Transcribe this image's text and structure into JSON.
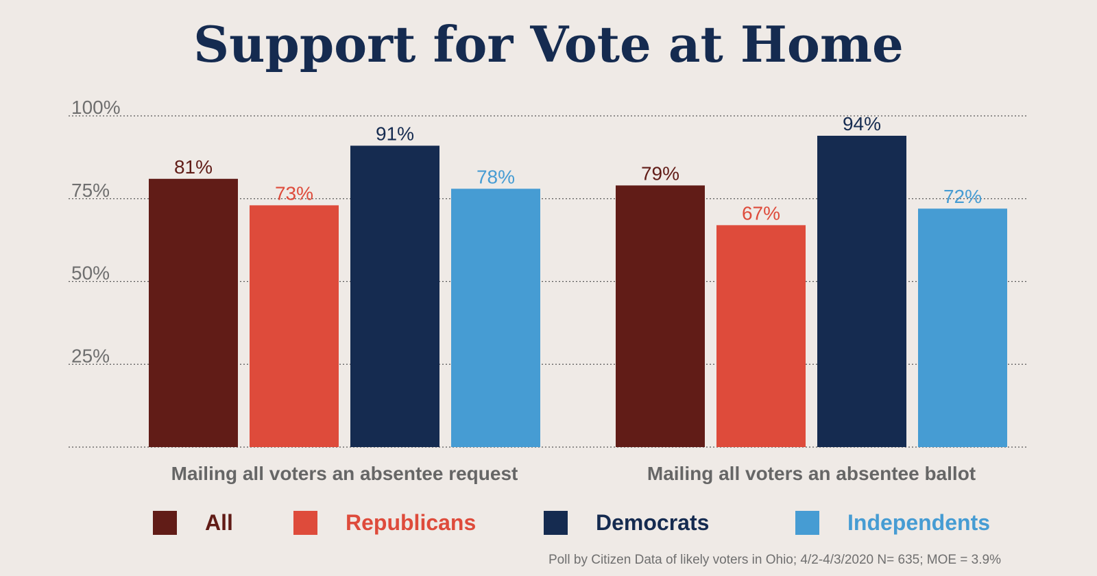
{
  "chart_data": {
    "type": "bar",
    "title": "Support for Vote at Home",
    "categories": [
      "Mailing all voters an absentee request",
      "Mailing all voters an absentee ballot"
    ],
    "series": [
      {
        "name": "All",
        "values": [
          81,
          79
        ],
        "color": "#611c17"
      },
      {
        "name": "Republicans",
        "values": [
          73,
          67
        ],
        "color": "#de4b3b"
      },
      {
        "name": "Democrats",
        "values": [
          91,
          94
        ],
        "color": "#152b50"
      },
      {
        "name": "Independents",
        "values": [
          78,
          72
        ],
        "color": "#469cd3"
      }
    ],
    "value_labels": [
      [
        "81%",
        "79%"
      ],
      [
        "73%",
        "67%"
      ],
      [
        "91%",
        "94%"
      ],
      [
        "78%",
        "72%"
      ]
    ],
    "yticks": [
      {
        "value": 100,
        "label": "100%"
      },
      {
        "value": 75,
        "label": "75%"
      },
      {
        "value": 50,
        "label": "50%"
      },
      {
        "value": 25,
        "label": "25%"
      }
    ],
    "ylim": [
      0,
      100
    ],
    "grid": "dotted horizontal",
    "legend_placement": "bottom",
    "note": "Poll by Citizen Data of likely voters in Ohio; 4/2-4/3/2020 N= 635; MOE = 3.9%",
    "colors": {
      "background": "#efeae6",
      "title": "#152b50",
      "axis_text": "#6f6f6f"
    }
  }
}
